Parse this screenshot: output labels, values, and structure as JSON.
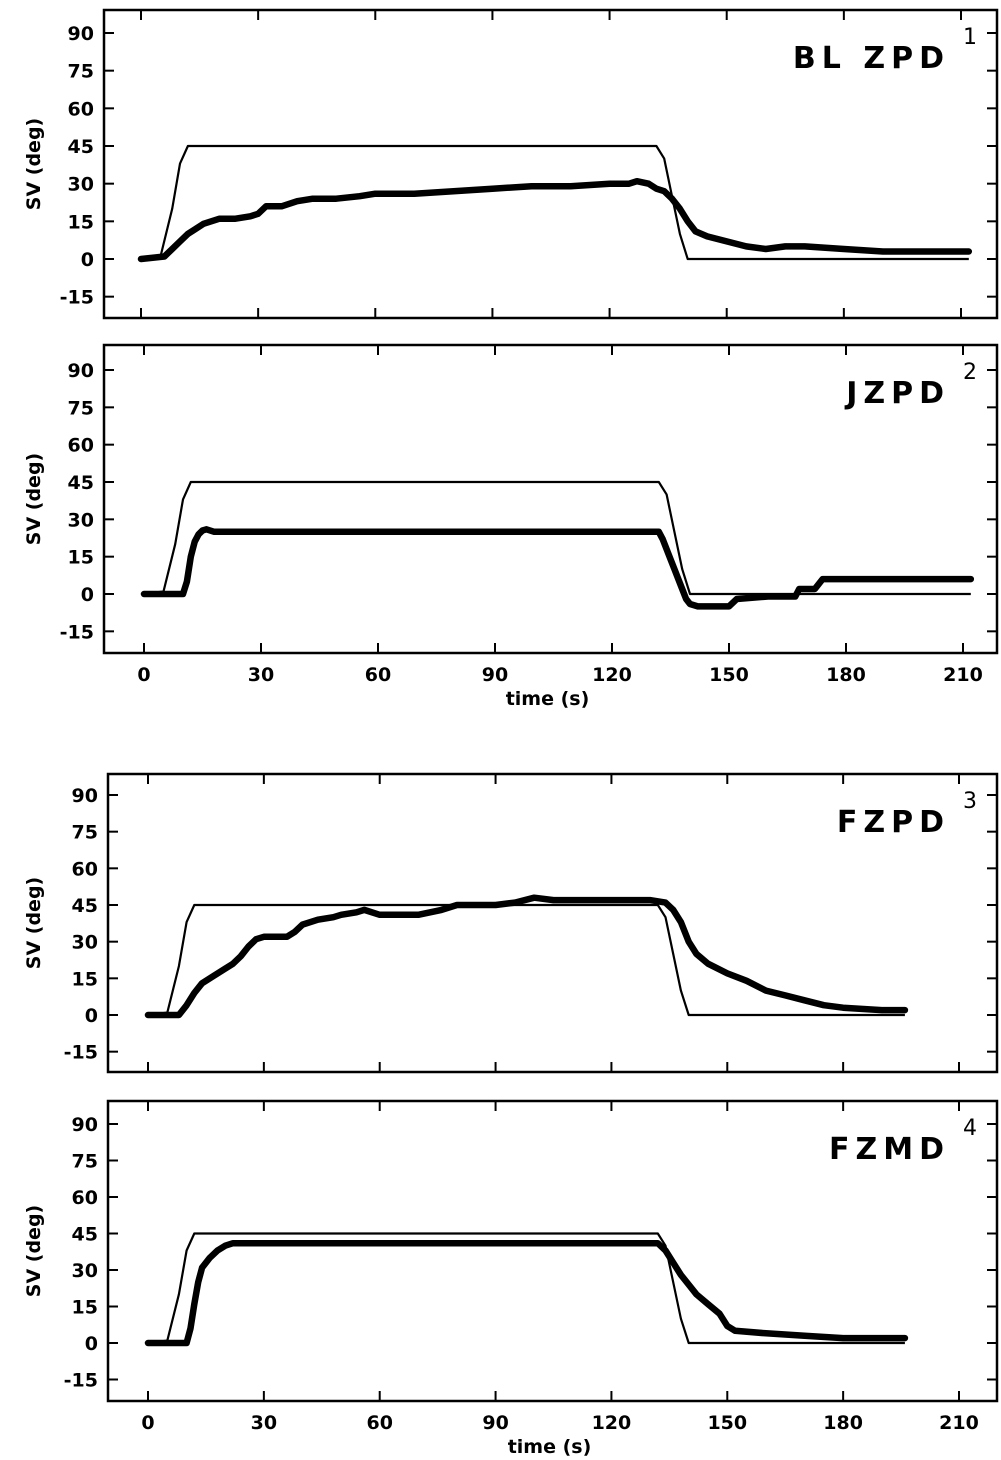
{
  "figure": {
    "panels_count": 4
  },
  "chart_data": [
    {
      "type": "line",
      "panel_label": "BL ZPD",
      "panel_number": "1",
      "xlabel": "",
      "ylabel": "SV (deg)",
      "xlim": [
        -10,
        212
      ],
      "ylim": [
        -24,
        99
      ],
      "x_ticks": [
        0,
        30,
        60,
        90,
        120,
        150,
        180,
        210
      ],
      "x_tick_labels": [],
      "y_ticks": [
        90,
        75,
        60,
        45,
        30,
        15,
        0,
        -15
      ],
      "y_tick_labels": [
        "90",
        "75",
        "60",
        "45",
        "30",
        "15",
        "0",
        "-15"
      ],
      "series": [
        {
          "style": "thin",
          "x": [
            0,
            5,
            8,
            10,
            12,
            132,
            134,
            136,
            138,
            140,
            212
          ],
          "y": [
            0,
            1,
            20,
            38,
            45,
            45,
            40,
            25,
            10,
            0,
            0
          ]
        },
        {
          "style": "thick",
          "x": [
            0,
            6,
            8,
            10,
            12,
            14,
            16,
            18,
            20,
            24,
            28,
            30,
            32,
            36,
            40,
            44,
            50,
            56,
            60,
            70,
            80,
            90,
            100,
            110,
            120,
            125,
            127,
            130,
            132,
            134,
            136,
            138,
            140,
            142,
            145,
            150,
            155,
            160,
            165,
            170,
            180,
            190,
            200,
            212
          ],
          "y": [
            0,
            1,
            4,
            7,
            10,
            12,
            14,
            15,
            16,
            16,
            17,
            18,
            21,
            21,
            23,
            24,
            24,
            25,
            26,
            26,
            27,
            28,
            29,
            29,
            30,
            30,
            31,
            30,
            28,
            27,
            24,
            20,
            15,
            11,
            9,
            7,
            5,
            4,
            5,
            5,
            4,
            3,
            3,
            3
          ]
        }
      ]
    },
    {
      "type": "line",
      "panel_label": "JZPD",
      "panel_number": "2",
      "xlabel": "time (s)",
      "ylabel": "SV (deg)",
      "xlim": [
        -10,
        212
      ],
      "ylim": [
        -24,
        99
      ],
      "x_ticks": [
        0,
        30,
        60,
        90,
        120,
        150,
        180,
        210
      ],
      "x_tick_labels": [
        "0",
        "30",
        "60",
        "90",
        "120",
        "150",
        "180",
        "210"
      ],
      "y_ticks": [
        90,
        75,
        60,
        45,
        30,
        15,
        0,
        -15
      ],
      "y_tick_labels": [
        "90",
        "75",
        "60",
        "45",
        "30",
        "15",
        "0",
        "-15"
      ],
      "series": [
        {
          "style": "thin",
          "x": [
            0,
            5,
            8,
            10,
            12,
            132,
            134,
            136,
            138,
            140,
            212
          ],
          "y": [
            0,
            1,
            20,
            38,
            45,
            45,
            40,
            25,
            10,
            0,
            0
          ]
        },
        {
          "style": "thick",
          "x": [
            0,
            10,
            11,
            12,
            13,
            14,
            15,
            16,
            18,
            130,
            132,
            133,
            134,
            135,
            136,
            137,
            138,
            139,
            140,
            142,
            150,
            152,
            160,
            167,
            168,
            172,
            174,
            212
          ],
          "y": [
            0,
            0,
            5,
            15,
            21,
            24,
            25.5,
            26,
            25,
            25,
            25,
            22,
            18,
            14,
            10,
            6,
            2,
            -2,
            -4,
            -5,
            -5,
            -2,
            -1,
            -1,
            2,
            2,
            6,
            6
          ]
        }
      ]
    },
    {
      "type": "line",
      "panel_label": "FZPD",
      "panel_number": "3",
      "xlabel": "",
      "ylabel": "SV (deg)",
      "xlim": [
        -10,
        212
      ],
      "ylim": [
        -24,
        99
      ],
      "x_ticks": [
        0,
        30,
        60,
        90,
        120,
        150,
        180,
        210
      ],
      "x_tick_labels": [],
      "y_ticks": [
        90,
        75,
        60,
        45,
        30,
        15,
        0,
        -15
      ],
      "y_tick_labels": [
        "90",
        "75",
        "60",
        "45",
        "30",
        "15",
        "0",
        "-15"
      ],
      "series": [
        {
          "style": "thin",
          "x": [
            0,
            5,
            8,
            10,
            12,
            132,
            134,
            136,
            138,
            140,
            196
          ],
          "y": [
            0,
            1,
            20,
            38,
            45,
            45,
            40,
            25,
            10,
            0,
            0
          ]
        },
        {
          "style": "thick",
          "x": [
            0,
            8,
            10,
            12,
            14,
            17,
            20,
            22,
            24,
            26,
            28,
            30,
            34,
            36,
            38,
            40,
            44,
            48,
            50,
            54,
            56,
            60,
            70,
            76,
            80,
            90,
            95,
            100,
            105,
            110,
            120,
            130,
            134,
            136,
            138,
            140,
            142,
            145,
            150,
            155,
            160,
            165,
            170,
            175,
            180,
            190,
            196
          ],
          "y": [
            0,
            0,
            4,
            9,
            13,
            16,
            19,
            21,
            24,
            28,
            31,
            32,
            32,
            32,
            34,
            37,
            39,
            40,
            41,
            42,
            43,
            41,
            41,
            43,
            45,
            45,
            46,
            48,
            47,
            47,
            47,
            47,
            46,
            43,
            38,
            30,
            25,
            21,
            17,
            14,
            10,
            8,
            6,
            4,
            3,
            2,
            2
          ]
        }
      ]
    },
    {
      "type": "line",
      "panel_label": "FZMD",
      "panel_number": "4",
      "xlabel": "time (s)",
      "ylabel": "SV (deg)",
      "xlim": [
        -10,
        212
      ],
      "ylim": [
        -24,
        99
      ],
      "x_ticks": [
        0,
        30,
        60,
        90,
        120,
        150,
        180,
        210
      ],
      "x_tick_labels": [
        "0",
        "30",
        "60",
        "90",
        "120",
        "150",
        "180",
        "210"
      ],
      "y_ticks": [
        90,
        75,
        60,
        45,
        30,
        15,
        0,
        -15
      ],
      "y_tick_labels": [
        "90",
        "75",
        "60",
        "45",
        "30",
        "15",
        "0",
        "-15"
      ],
      "series": [
        {
          "style": "thin",
          "x": [
            0,
            5,
            8,
            10,
            12,
            132,
            134,
            136,
            138,
            140,
            196
          ],
          "y": [
            0,
            1,
            20,
            38,
            45,
            45,
            40,
            25,
            10,
            0,
            0
          ]
        },
        {
          "style": "thick",
          "x": [
            0,
            10,
            11,
            12,
            13,
            14,
            16,
            18,
            20,
            22,
            30,
            60,
            90,
            120,
            132,
            134,
            136,
            138,
            140,
            142,
            145,
            148,
            150,
            152,
            160,
            170,
            180,
            190,
            196
          ],
          "y": [
            0,
            0,
            6,
            16,
            25,
            31,
            35,
            38,
            40,
            41,
            41,
            41,
            41,
            41,
            41,
            38,
            33,
            28,
            24,
            20,
            16,
            12,
            7,
            5,
            4,
            3,
            2,
            2,
            2
          ]
        }
      ]
    }
  ]
}
